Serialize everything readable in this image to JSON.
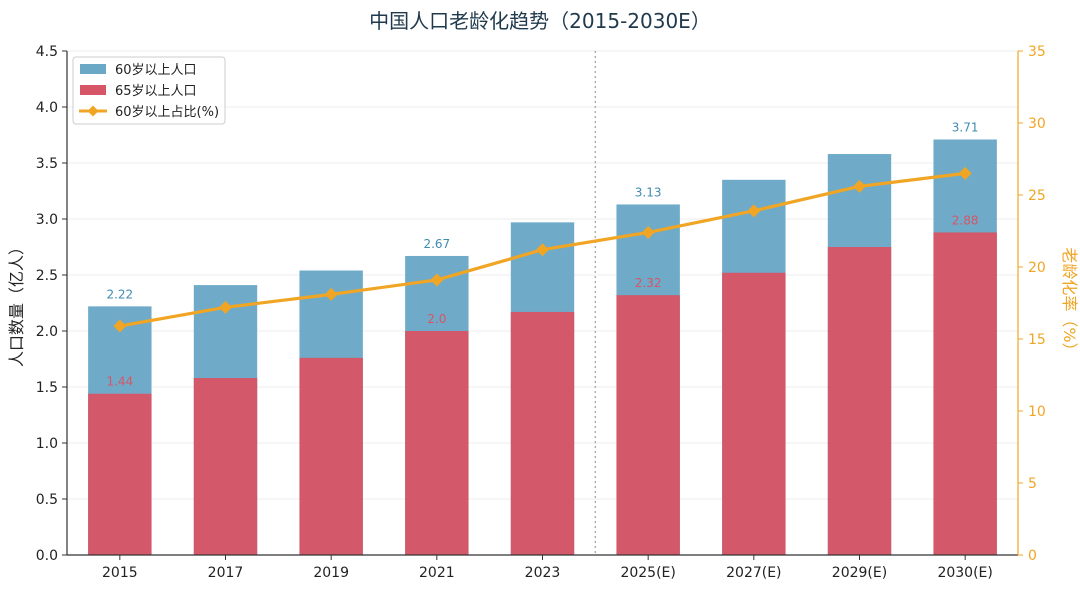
{
  "chart_data": {
    "type": "bar",
    "title": "中国人口老龄化趋势（2015-2030E）",
    "categories": [
      "2015",
      "2017",
      "2019",
      "2021",
      "2023",
      "2025(E)",
      "2027(E)",
      "2029(E)",
      "2030(E)"
    ],
    "series": [
      {
        "name": "60岁以上人口",
        "kind": "bar",
        "axis": "left",
        "color": "#6aa8c6",
        "values": [
          2.22,
          2.41,
          2.54,
          2.67,
          2.97,
          3.13,
          3.35,
          3.58,
          3.71
        ]
      },
      {
        "name": "65岁以上人口",
        "kind": "bar",
        "axis": "left",
        "color": "#d65566",
        "values": [
          1.44,
          1.58,
          1.76,
          2.0,
          2.17,
          2.32,
          2.52,
          2.75,
          2.88
        ]
      },
      {
        "name": "60岁以上占比(%)",
        "kind": "line",
        "axis": "right",
        "color": "#f0a524",
        "values": [
          15.9,
          17.2,
          18.1,
          19.1,
          21.2,
          22.4,
          23.9,
          25.6,
          26.5
        ]
      }
    ],
    "data_labels": {
      "60岁以上人口": [
        {
          "index": 0,
          "text": "2.22"
        },
        {
          "index": 3,
          "text": "2.67"
        },
        {
          "index": 5,
          "text": "3.13"
        },
        {
          "index": 8,
          "text": "3.71"
        }
      ],
      "65岁以上人口": [
        {
          "index": 0,
          "text": "1.44"
        },
        {
          "index": 3,
          "text": "2.0"
        },
        {
          "index": 5,
          "text": "2.32"
        },
        {
          "index": 8,
          "text": "2.88"
        }
      ]
    },
    "ylabel": "人口数量（亿人）",
    "ylim": [
      0,
      4.5
    ],
    "yticks": [
      "0.0",
      "0.5",
      "1.0",
      "1.5",
      "2.0",
      "2.5",
      "3.0",
      "3.5",
      "4.0",
      "4.5"
    ],
    "y2label": "老龄化率（%）",
    "y2lim": [
      0,
      35
    ],
    "y2ticks": [
      "0",
      "5",
      "10",
      "15",
      "20",
      "25",
      "30",
      "35"
    ],
    "divider_after_category": "2023",
    "legend_position": "top-left",
    "grid": true
  }
}
